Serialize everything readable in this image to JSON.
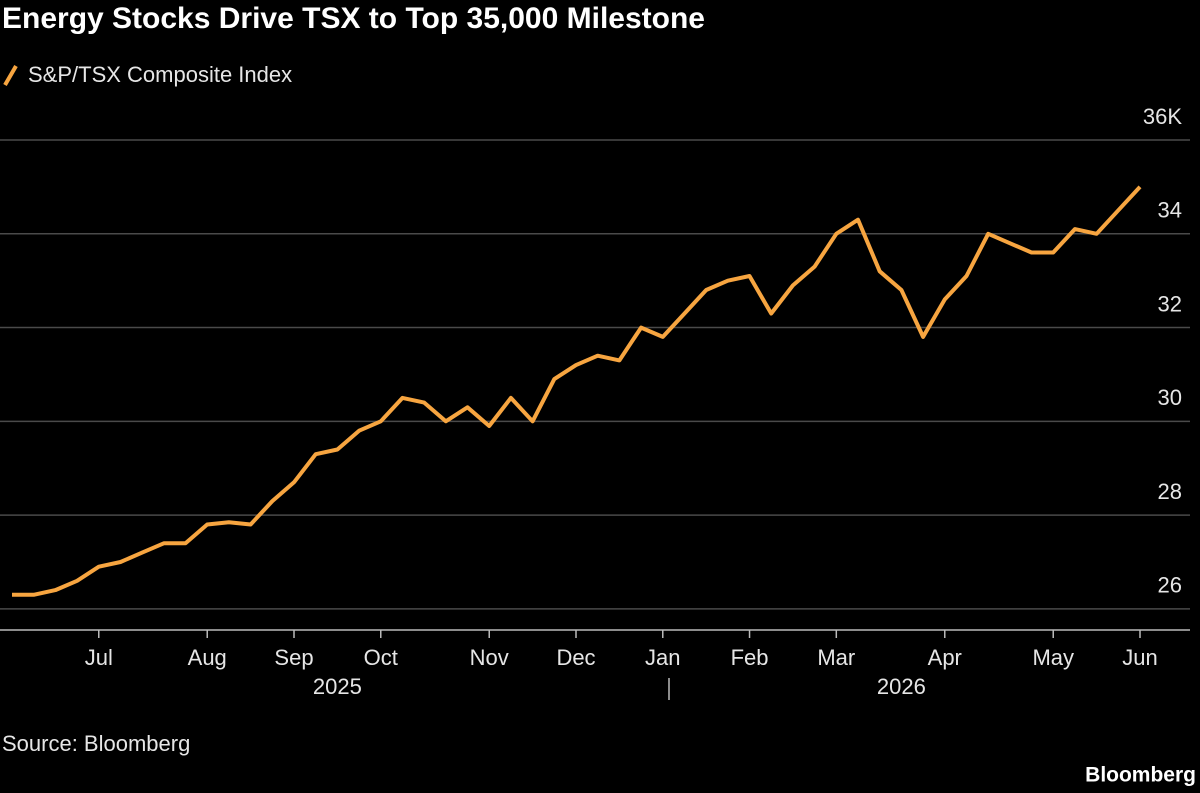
{
  "chart_data": {
    "type": "line",
    "title": "Energy Stocks Drive TSX to Top 35,000 Milestone",
    "source": "Source: Bloomberg",
    "brand": "Bloomberg",
    "categories": [
      null,
      null,
      null,
      null,
      "Jul",
      null,
      null,
      null,
      null,
      "Aug",
      null,
      null,
      null,
      "Sep",
      null,
      null,
      null,
      "Oct",
      null,
      null,
      null,
      null,
      "Nov",
      null,
      null,
      null,
      "Dec",
      null,
      null,
      null,
      "Jan",
      null,
      null,
      null,
      "Feb",
      null,
      null,
      null,
      "Mar",
      null,
      null,
      null,
      null,
      "Apr",
      null,
      null,
      null,
      null,
      "May",
      null,
      null,
      null,
      "Jun"
    ],
    "year_labels": [
      "2025",
      "2026"
    ],
    "series": [
      {
        "name": "S&P/TSX Composite Index",
        "color": "#f7a540",
        "values": [
          26.3,
          26.3,
          26.4,
          26.6,
          26.9,
          27.0,
          27.2,
          27.4,
          27.4,
          27.8,
          27.85,
          27.8,
          28.3,
          28.7,
          29.3,
          29.4,
          29.8,
          30.0,
          30.5,
          30.4,
          30.0,
          30.3,
          29.9,
          30.5,
          30.0,
          30.9,
          31.2,
          31.4,
          31.3,
          32.0,
          31.8,
          32.3,
          32.8,
          33.0,
          33.1,
          32.3,
          32.9,
          33.3,
          34.0,
          34.3,
          33.2,
          32.8,
          31.8,
          32.6,
          33.1,
          34.0,
          33.8,
          33.6,
          33.6,
          34.1,
          34.0,
          34.5,
          35.0
        ]
      }
    ],
    "ylim": [
      25.55,
      36
    ],
    "yticks": [
      26,
      28,
      30,
      32,
      34,
      {
        "value": 36,
        "label": "36K"
      }
    ],
    "grid": true
  }
}
